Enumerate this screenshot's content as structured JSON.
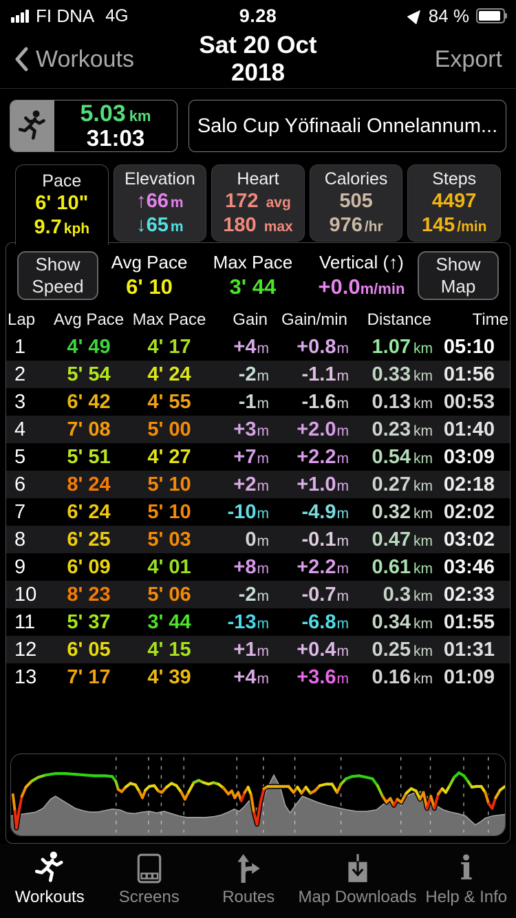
{
  "status_bar": {
    "carrier": "FI DNA",
    "network": "4G",
    "time": "9.28",
    "battery_percent": "84 %"
  },
  "nav_bar": {
    "back_label": "Workouts",
    "title": "Sat 20 Oct 2018",
    "export_label": "Export"
  },
  "summary": {
    "distance": "5.03",
    "distance_unit": "km",
    "distance_color": "#55dd77",
    "duration": "31:03",
    "workout_title": "Salo Cup Yöfinaali Onnelannum..."
  },
  "metric_tabs": {
    "pace": {
      "label": "Pace",
      "line1": "6' 10\"",
      "line2": "9.7",
      "line2_unit": "kph",
      "color": "#f2ee12"
    },
    "elevation": {
      "label": "Elevation",
      "up": "↑66",
      "down": "↓65",
      "unit": "m",
      "up_color": "#e583ee",
      "down_color": "#55e1e1"
    },
    "heart": {
      "label": "Heart",
      "avg": "172",
      "avg_unit": "avg",
      "max": "180",
      "max_unit": "max",
      "color": "#f08a7c"
    },
    "calories": {
      "label": "Calories",
      "total": "505",
      "rate": "976",
      "rate_unit": "/hr",
      "color": "#cbb9a3"
    },
    "steps": {
      "label": "Steps",
      "total": "4497",
      "rate": "145",
      "rate_unit": "/min",
      "color": "#f0b512"
    }
  },
  "controls": {
    "show_speed": "Show Speed",
    "show_map": "Show Map",
    "avg_pace_label": "Avg Pace",
    "avg_pace": "6' 10",
    "avg_pace_color": "#f2ee12",
    "max_pace_label": "Max Pace",
    "max_pace": "3' 44",
    "max_pace_color": "#4ce32b",
    "vertical_label": "Vertical (↑)",
    "vertical": "+0.0",
    "vertical_unit": "m/min",
    "vertical_color": "#e583ee"
  },
  "lap_table": {
    "columns": [
      "Lap",
      "Avg Pace",
      "Max Pace",
      "Gain",
      "Gain/min",
      "Distance",
      "Time"
    ],
    "unit_m": "m",
    "unit_km": "km",
    "rows": [
      {
        "lap": "1",
        "avg_pace": {
          "v": "4' 49",
          "c": "#3ed43e"
        },
        "max_pace": {
          "v": "4' 17",
          "c": "#a9e21c"
        },
        "gain": {
          "v": "+4",
          "c": "#d9a9e6"
        },
        "gain_min": {
          "v": "+0.8",
          "c": "#dba9e8"
        },
        "distance": {
          "v": "1.07",
          "c": "#96e89e"
        },
        "time": {
          "v": "05:10",
          "c": "#ffffff"
        }
      },
      {
        "lap": "2",
        "avg_pace": {
          "v": "5' 54",
          "c": "#b4e61e"
        },
        "max_pace": {
          "v": "4' 24",
          "c": "#dce619"
        },
        "gain": {
          "v": "-2",
          "c": "#c9ded6"
        },
        "gain_min": {
          "v": "-1.1",
          "c": "#dfc0e3"
        },
        "distance": {
          "v": "0.33",
          "c": "#c2d4c4"
        },
        "time": {
          "v": "01:56",
          "c": "#e8e8e8"
        }
      },
      {
        "lap": "3",
        "avg_pace": {
          "v": "6' 42",
          "c": "#ecb30e"
        },
        "max_pace": {
          "v": "4' 55",
          "c": "#f0a014"
        },
        "gain": {
          "v": "-1",
          "c": "#cdd8d3"
        },
        "gain_min": {
          "v": "-1.6",
          "c": "#d8d8d8"
        },
        "distance": {
          "v": "0.13",
          "c": "#d2d4d2"
        },
        "time": {
          "v": "00:53",
          "c": "#dcdcdc"
        }
      },
      {
        "lap": "4",
        "avg_pace": {
          "v": "7' 08",
          "c": "#f49a09"
        },
        "max_pace": {
          "v": "5' 00",
          "c": "#f48d06"
        },
        "gain": {
          "v": "+3",
          "c": "#d7a3e5"
        },
        "gain_min": {
          "v": "+2.0",
          "c": "#d99fe8"
        },
        "distance": {
          "v": "0.23",
          "c": "#ccd6cc"
        },
        "time": {
          "v": "01:40",
          "c": "#e2e2e2"
        }
      },
      {
        "lap": "5",
        "avg_pace": {
          "v": "5' 51",
          "c": "#bce61e"
        },
        "max_pace": {
          "v": "4' 27",
          "c": "#e4e316"
        },
        "gain": {
          "v": "+7",
          "c": "#d69de8"
        },
        "gain_min": {
          "v": "+2.2",
          "c": "#d89ce8"
        },
        "distance": {
          "v": "0.54",
          "c": "#b4dcb8"
        },
        "time": {
          "v": "03:09",
          "c": "#f4f4f4"
        }
      },
      {
        "lap": "6",
        "avg_pace": {
          "v": "8' 24",
          "c": "#f67c02"
        },
        "max_pace": {
          "v": "5' 10",
          "c": "#f48806"
        },
        "gain": {
          "v": "+2",
          "c": "#d9ade5"
        },
        "gain_min": {
          "v": "+1.0",
          "c": "#dcaee8"
        },
        "distance": {
          "v": "0.27",
          "c": "#ccd6ce"
        },
        "time": {
          "v": "02:18",
          "c": "#ececec"
        }
      },
      {
        "lap": "7",
        "avg_pace": {
          "v": "6' 24",
          "c": "#eec80e"
        },
        "max_pace": {
          "v": "5' 10",
          "c": "#f48806"
        },
        "gain": {
          "v": "-10",
          "c": "#62dce2"
        },
        "gain_min": {
          "v": "-4.9",
          "c": "#7adcdc"
        },
        "distance": {
          "v": "0.32",
          "c": "#c8d6c8"
        },
        "time": {
          "v": "02:02",
          "c": "#e8e8e8"
        }
      },
      {
        "lap": "8",
        "avg_pace": {
          "v": "6' 25",
          "c": "#eecc0e"
        },
        "max_pace": {
          "v": "5' 03",
          "c": "#f48c06"
        },
        "gain": {
          "v": "0",
          "c": "#d4d4d4"
        },
        "gain_min": {
          "v": "-0.1",
          "c": "#e0cce0"
        },
        "distance": {
          "v": "0.47",
          "c": "#badcbe"
        },
        "time": {
          "v": "03:02",
          "c": "#f2f2f2"
        }
      },
      {
        "lap": "9",
        "avg_pace": {
          "v": "6' 09",
          "c": "#ead60e"
        },
        "max_pace": {
          "v": "4' 01",
          "c": "#9ae21e"
        },
        "gain": {
          "v": "+8",
          "c": "#d69ae8"
        },
        "gain_min": {
          "v": "+2.2",
          "c": "#d89ce8"
        },
        "distance": {
          "v": "0.61",
          "c": "#a8e0ae"
        },
        "time": {
          "v": "03:46",
          "c": "#f6f6f6"
        }
      },
      {
        "lap": "10",
        "avg_pace": {
          "v": "8' 23",
          "c": "#f67c02"
        },
        "max_pace": {
          "v": "5' 06",
          "c": "#f48a06"
        },
        "gain": {
          "v": "-2",
          "c": "#c9ded6"
        },
        "gain_min": {
          "v": "-0.7",
          "c": "#dcc4de"
        },
        "distance": {
          "v": "0.3",
          "c": "#c6d4c6"
        },
        "time": {
          "v": "02:33",
          "c": "#eeeeee"
        }
      },
      {
        "lap": "11",
        "avg_pace": {
          "v": "5' 37",
          "c": "#a6e61a"
        },
        "max_pace": {
          "v": "3' 44",
          "c": "#4ce32b"
        },
        "gain": {
          "v": "-13",
          "c": "#4ed9ea"
        },
        "gain_min": {
          "v": "-6.8",
          "c": "#55dbe6"
        },
        "distance": {
          "v": "0.34",
          "c": "#c2d6c4"
        },
        "time": {
          "v": "01:55",
          "c": "#e8e8e8"
        }
      },
      {
        "lap": "12",
        "avg_pace": {
          "v": "6' 05",
          "c": "#e8da0e"
        },
        "max_pace": {
          "v": "4' 15",
          "c": "#a9e21c"
        },
        "gain": {
          "v": "+1",
          "c": "#dbb3e3"
        },
        "gain_min": {
          "v": "+0.4",
          "c": "#ddb7e6"
        },
        "distance": {
          "v": "0.25",
          "c": "#ccd6cc"
        },
        "time": {
          "v": "01:31",
          "c": "#e0e0e0"
        }
      },
      {
        "lap": "13",
        "avg_pace": {
          "v": "7' 17",
          "c": "#f2a309"
        },
        "max_pace": {
          "v": "4' 39",
          "c": "#eeba10"
        },
        "gain": {
          "v": "+4",
          "c": "#d9a9e6"
        },
        "gain_min": {
          "v": "+3.6",
          "c": "#ea68ea"
        },
        "distance": {
          "v": "0.16",
          "c": "#d0d4d0"
        },
        "time": {
          "v": "01:09",
          "c": "#dcdcdc"
        }
      }
    ]
  },
  "chart_data": {
    "type": "area+line",
    "description": "Elevation profile (gray area) with pace line colored green=fast to red=slow; dashed vertical lines mark lap boundaries",
    "x_range_km": [
      0,
      5.03
    ],
    "grid": "lap-boundary dashed verticals",
    "elevation_area_color": "#6f6f6f",
    "elevation_edge_color": "#a2a2a2",
    "lap_line_color": "#d0d0d0",
    "pace_colors": {
      "G": "#2fd411",
      "g": "#8cd411",
      "Y": "#e6d60f",
      "O": "#f09004",
      "A": "#f0b008",
      "R": "#eb2b0c"
    },
    "elevation_profile": [
      [
        0,
        0.24
      ],
      [
        0.01,
        0.25
      ],
      [
        0.03,
        0.27
      ],
      [
        0.05,
        0.29
      ],
      [
        0.065,
        0.34
      ],
      [
        0.08,
        0.46
      ],
      [
        0.09,
        0.5
      ],
      [
        0.1,
        0.46
      ],
      [
        0.115,
        0.4
      ],
      [
        0.13,
        0.34
      ],
      [
        0.145,
        0.31
      ],
      [
        0.16,
        0.29
      ],
      [
        0.175,
        0.29
      ],
      [
        0.19,
        0.31
      ],
      [
        0.205,
        0.33
      ],
      [
        0.22,
        0.32
      ],
      [
        0.235,
        0.28
      ],
      [
        0.25,
        0.27
      ],
      [
        0.265,
        0.29
      ],
      [
        0.28,
        0.3
      ],
      [
        0.295,
        0.28
      ],
      [
        0.31,
        0.3
      ],
      [
        0.325,
        0.27
      ],
      [
        0.34,
        0.24
      ],
      [
        0.355,
        0.22
      ],
      [
        0.375,
        0.22
      ],
      [
        0.395,
        0.22
      ],
      [
        0.41,
        0.23
      ],
      [
        0.425,
        0.25
      ],
      [
        0.44,
        0.29
      ],
      [
        0.452,
        0.33
      ],
      [
        0.462,
        0.3
      ],
      [
        0.472,
        0.36
      ],
      [
        0.482,
        0.44
      ],
      [
        0.49,
        0.35
      ],
      [
        0.5,
        0.34
      ],
      [
        0.51,
        0.45
      ],
      [
        0.52,
        0.62
      ],
      [
        0.532,
        0.78
      ],
      [
        0.545,
        0.62
      ],
      [
        0.555,
        0.38
      ],
      [
        0.565,
        0.28
      ],
      [
        0.578,
        0.4
      ],
      [
        0.59,
        0.5
      ],
      [
        0.605,
        0.46
      ],
      [
        0.62,
        0.42
      ],
      [
        0.64,
        0.38
      ],
      [
        0.66,
        0.35
      ],
      [
        0.68,
        0.32
      ],
      [
        0.7,
        0.3
      ],
      [
        0.72,
        0.3
      ],
      [
        0.74,
        0.32
      ],
      [
        0.755,
        0.4
      ],
      [
        0.765,
        0.45
      ],
      [
        0.775,
        0.38
      ],
      [
        0.785,
        0.44
      ],
      [
        0.8,
        0.5
      ],
      [
        0.815,
        0.54
      ],
      [
        0.83,
        0.56
      ],
      [
        0.845,
        0.48
      ],
      [
        0.86,
        0.38
      ],
      [
        0.875,
        0.32
      ],
      [
        0.89,
        0.29
      ],
      [
        0.905,
        0.27
      ],
      [
        0.92,
        0.24
      ],
      [
        0.93,
        0.18
      ],
      [
        0.94,
        0.12
      ],
      [
        0.95,
        0.16
      ],
      [
        0.96,
        0.21
      ],
      [
        0.975,
        0.24
      ],
      [
        1,
        0.26
      ]
    ],
    "pace_line": [
      [
        0.004,
        0.52,
        "O"
      ],
      [
        0.008,
        0.3,
        "R"
      ],
      [
        0.011,
        0.08,
        "R"
      ],
      [
        0.016,
        0.3,
        "R"
      ],
      [
        0.022,
        0.5,
        "O"
      ],
      [
        0.03,
        0.62,
        "A"
      ],
      [
        0.042,
        0.7,
        "g"
      ],
      [
        0.055,
        0.75,
        "g"
      ],
      [
        0.07,
        0.78,
        "G"
      ],
      [
        0.09,
        0.8,
        "G"
      ],
      [
        0.11,
        0.8,
        "G"
      ],
      [
        0.13,
        0.79,
        "G"
      ],
      [
        0.15,
        0.78,
        "G"
      ],
      [
        0.17,
        0.77,
        "G"
      ],
      [
        0.19,
        0.77,
        "G"
      ],
      [
        0.205,
        0.76,
        "G"
      ],
      [
        0.212,
        0.7,
        "g"
      ],
      [
        0.217,
        0.59,
        "O"
      ],
      [
        0.224,
        0.56,
        "O"
      ],
      [
        0.232,
        0.62,
        "Y"
      ],
      [
        0.242,
        0.67,
        "Y"
      ],
      [
        0.252,
        0.65,
        "Y"
      ],
      [
        0.26,
        0.56,
        "O"
      ],
      [
        0.266,
        0.48,
        "O"
      ],
      [
        0.272,
        0.58,
        "Y"
      ],
      [
        0.28,
        0.63,
        "Y"
      ],
      [
        0.29,
        0.64,
        "Y"
      ],
      [
        0.298,
        0.57,
        "O"
      ],
      [
        0.305,
        0.55,
        "O"
      ],
      [
        0.315,
        0.62,
        "Y"
      ],
      [
        0.325,
        0.67,
        "Y"
      ],
      [
        0.335,
        0.64,
        "Y"
      ],
      [
        0.345,
        0.55,
        "O"
      ],
      [
        0.352,
        0.46,
        "O"
      ],
      [
        0.36,
        0.56,
        "Y"
      ],
      [
        0.37,
        0.68,
        "g"
      ],
      [
        0.38,
        0.71,
        "g"
      ],
      [
        0.39,
        0.68,
        "Y"
      ],
      [
        0.4,
        0.66,
        "Y"
      ],
      [
        0.41,
        0.68,
        "g"
      ],
      [
        0.42,
        0.66,
        "Y"
      ],
      [
        0.43,
        0.61,
        "O"
      ],
      [
        0.44,
        0.53,
        "O"
      ],
      [
        0.447,
        0.57,
        "O"
      ],
      [
        0.453,
        0.48,
        "O"
      ],
      [
        0.46,
        0.55,
        "O"
      ],
      [
        0.466,
        0.44,
        "R"
      ],
      [
        0.473,
        0.55,
        "O"
      ],
      [
        0.48,
        0.62,
        "Y"
      ],
      [
        0.486,
        0.52,
        "O"
      ],
      [
        0.492,
        0.28,
        "R"
      ],
      [
        0.498,
        0.13,
        "R"
      ],
      [
        0.505,
        0.42,
        "R"
      ],
      [
        0.512,
        0.6,
        "O"
      ],
      [
        0.52,
        0.63,
        "A"
      ],
      [
        0.535,
        0.63,
        "A"
      ],
      [
        0.55,
        0.63,
        "A"
      ],
      [
        0.562,
        0.63,
        "A"
      ],
      [
        0.572,
        0.55,
        "O"
      ],
      [
        0.58,
        0.62,
        "Y"
      ],
      [
        0.588,
        0.54,
        "O"
      ],
      [
        0.597,
        0.62,
        "Y"
      ],
      [
        0.606,
        0.54,
        "O"
      ],
      [
        0.615,
        0.57,
        "O"
      ],
      [
        0.625,
        0.64,
        "Y"
      ],
      [
        0.638,
        0.66,
        "Y"
      ],
      [
        0.65,
        0.66,
        "Y"
      ],
      [
        0.66,
        0.55,
        "O"
      ],
      [
        0.668,
        0.66,
        "g"
      ],
      [
        0.678,
        0.73,
        "G"
      ],
      [
        0.69,
        0.76,
        "G"
      ],
      [
        0.705,
        0.77,
        "G"
      ],
      [
        0.72,
        0.75,
        "G"
      ],
      [
        0.732,
        0.73,
        "G"
      ],
      [
        0.742,
        0.64,
        "g"
      ],
      [
        0.752,
        0.5,
        "O"
      ],
      [
        0.76,
        0.42,
        "O"
      ],
      [
        0.768,
        0.47,
        "O"
      ],
      [
        0.775,
        0.38,
        "R"
      ],
      [
        0.782,
        0.46,
        "O"
      ],
      [
        0.79,
        0.42,
        "O"
      ],
      [
        0.8,
        0.54,
        "Y"
      ],
      [
        0.81,
        0.6,
        "Y"
      ],
      [
        0.82,
        0.57,
        "Y"
      ],
      [
        0.828,
        0.46,
        "O"
      ],
      [
        0.835,
        0.55,
        "O"
      ],
      [
        0.842,
        0.34,
        "R"
      ],
      [
        0.85,
        0.5,
        "O"
      ],
      [
        0.857,
        0.34,
        "R"
      ],
      [
        0.865,
        0.53,
        "O"
      ],
      [
        0.873,
        0.6,
        "Y"
      ],
      [
        0.88,
        0.55,
        "Y"
      ],
      [
        0.888,
        0.64,
        "g"
      ],
      [
        0.897,
        0.75,
        "G"
      ],
      [
        0.907,
        0.81,
        "G"
      ],
      [
        0.917,
        0.77,
        "G"
      ],
      [
        0.926,
        0.69,
        "g"
      ],
      [
        0.933,
        0.62,
        "Y"
      ],
      [
        0.942,
        0.63,
        "Y"
      ],
      [
        0.952,
        0.63,
        "Y"
      ],
      [
        0.96,
        0.55,
        "O"
      ],
      [
        0.967,
        0.4,
        "R"
      ],
      [
        0.974,
        0.34,
        "R"
      ],
      [
        0.981,
        0.48,
        "A"
      ],
      [
        0.99,
        0.58,
        "Y"
      ],
      [
        1,
        0.63,
        "Y"
      ]
    ]
  },
  "tab_bar": {
    "items": [
      {
        "label": "Workouts",
        "active": true
      },
      {
        "label": "Screens",
        "active": false
      },
      {
        "label": "Routes",
        "active": false
      },
      {
        "label": "Map Downloads",
        "active": false
      },
      {
        "label": "Help & Info",
        "active": false
      }
    ]
  }
}
